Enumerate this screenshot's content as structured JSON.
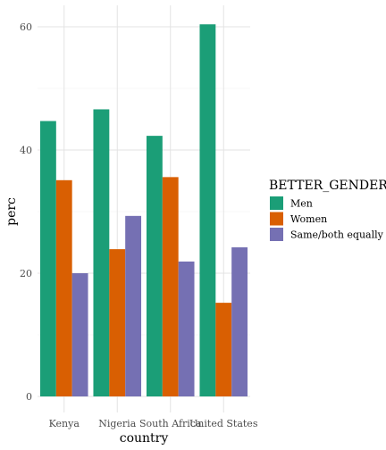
{
  "chart_data": {
    "type": "bar",
    "xlabel": "country",
    "ylabel": "perc",
    "categories": [
      "Kenya",
      "Nigeria",
      "South Africa",
      "United States"
    ],
    "ylim": [
      0,
      63
    ],
    "yticks": [
      0,
      20,
      40,
      60
    ],
    "grid": true,
    "legend": {
      "title": "BETTER_GENDER",
      "placement": "right"
    },
    "series": [
      {
        "name": "Men",
        "color": "#1b9e77",
        "values": [
          44.7,
          46.6,
          42.3,
          60.4
        ]
      },
      {
        "name": "Women",
        "color": "#d95f02",
        "values": [
          35.1,
          23.9,
          35.6,
          15.2
        ]
      },
      {
        "name": "Same/both equally",
        "color": "#7570b3",
        "values": [
          20.0,
          29.3,
          21.9,
          24.2
        ]
      }
    ]
  }
}
